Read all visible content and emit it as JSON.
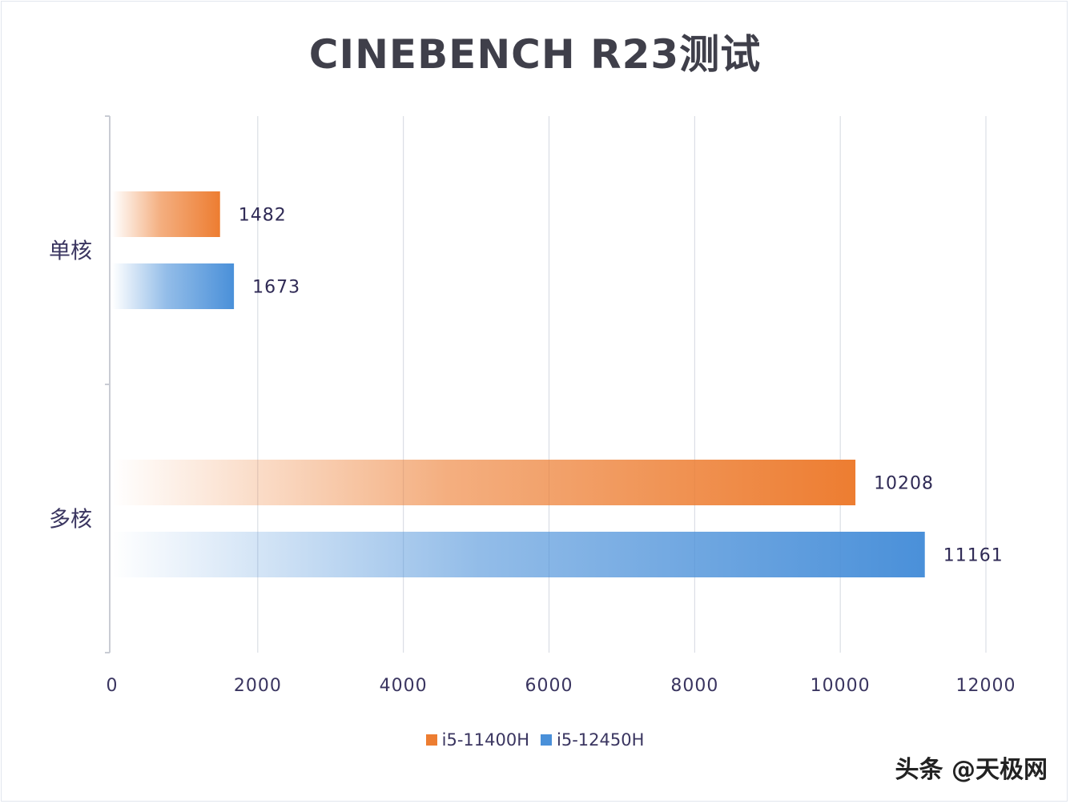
{
  "chart_data": {
    "type": "bar",
    "orientation": "horizontal",
    "title": "CINEBENCH R23测试",
    "categories": [
      "单核",
      "多核"
    ],
    "series": [
      {
        "name": "i5-11400H",
        "values": [
          1482,
          10208
        ],
        "color": "#ed7d31"
      },
      {
        "name": "i5-12450H",
        "values": [
          1673,
          11161
        ],
        "color": "#4a90d9"
      }
    ],
    "xlim": [
      0,
      12000
    ],
    "xticks": [
      0,
      2000,
      4000,
      6000,
      8000,
      10000,
      12000
    ],
    "grid": true,
    "legend": "bottom"
  },
  "watermark": "头条 @天极网"
}
